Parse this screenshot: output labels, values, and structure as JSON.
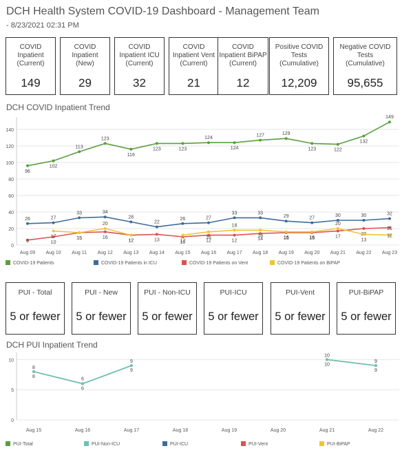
{
  "header": {
    "title": "DCH Health System COVID-19 Dashboard - Management Team",
    "subtitle": "- 8/23/2021 02:31 PM"
  },
  "kpis": [
    {
      "label": "COVID\nInpatient\n(Current)",
      "value": "149"
    },
    {
      "label": "COVID\nInpatient\n(New)",
      "value": "29"
    },
    {
      "label": "COVID\nInpatient ICU\n(Current)",
      "value": "32"
    },
    {
      "label": "COVID\nInpatient Vent\n(Current)",
      "value": "21"
    },
    {
      "label": "COVID\nInpatient BiPAP\n(Current)",
      "value": "12"
    },
    {
      "label": "Positive COVID\nTests\n(Cumulative)",
      "value": "12,209"
    },
    {
      "label": "Negative COVID\nTests\n(Cumulative)",
      "value": "95,655"
    }
  ],
  "pui_tiles": [
    {
      "label": "PUI - Total",
      "value": "5 or fewer"
    },
    {
      "label": "PUI - New",
      "value": "5 or fewer"
    },
    {
      "label": "PUI - Non-ICU",
      "value": "5 or fewer"
    },
    {
      "label": "PUI-ICU",
      "value": "5 or fewer"
    },
    {
      "label": "PUI-Vent",
      "value": "5 or fewer"
    },
    {
      "label": "PUI-BiPAP",
      "value": "5 or fewer"
    }
  ],
  "colors": {
    "green": "#5a9e3e",
    "blue": "#3f6b9a",
    "red": "#d9534f",
    "yellow": "#f0c433",
    "teal": "#6fc0b4"
  },
  "chart_data": [
    {
      "type": "line",
      "title": "DCH COVID Inpatient Trend",
      "categories": [
        "Aug 09",
        "Aug 10",
        "Aug 11",
        "Aug 12",
        "Aug 13",
        "Aug 14",
        "Aug 15",
        "Aug 16",
        "Aug 17",
        "Aug 18",
        "Aug 19",
        "Aug 20",
        "Aug 21",
        "Aug 22",
        "Aug 23"
      ],
      "yticks": [
        0,
        20,
        40,
        60,
        80,
        100,
        120,
        140
      ],
      "ylim": [
        0,
        150
      ],
      "grid": true,
      "legend_position": "bottom",
      "series": [
        {
          "name": "COVID-19 Patients",
          "color": "#5a9e3e",
          "values": [
            96,
            102,
            113,
            123,
            116,
            123,
            123,
            124,
            124,
            127,
            129,
            123,
            122,
            132,
            149
          ]
        },
        {
          "name": "COVID-19 Patients in ICU",
          "color": "#3f6b9a",
          "values": [
            26,
            27,
            33,
            34,
            28,
            22,
            26,
            27,
            33,
            33,
            29,
            27,
            30,
            30,
            32
          ]
        },
        {
          "name": "COVID-19 Patients on Vent",
          "color": "#d9534f",
          "values": [
            6,
            10,
            15,
            16,
            12,
            13,
            10,
            12,
            12,
            14,
            15,
            15,
            17,
            20,
            21
          ]
        },
        {
          "name": "COVID-19 Patients on BiPAP",
          "color": "#f0c433",
          "values": [
            null,
            17,
            15,
            20,
            12,
            null,
            12,
            16,
            18,
            18,
            16,
            16,
            20,
            13,
            12
          ]
        }
      ]
    },
    {
      "type": "line",
      "title": "DCH PUI Inpatient Trend",
      "categories": [
        "Aug 15",
        "Aug 16",
        "Aug 17",
        "Aug 18",
        "Aug 19",
        "Aug 20",
        "Aug 21",
        "Aug 22"
      ],
      "yticks": [
        0,
        5,
        10
      ],
      "ylim": [
        0,
        10.5
      ],
      "grid": true,
      "legend_position": "bottom",
      "series": [
        {
          "name": "PUI-Total",
          "color": "#5a9e3e",
          "values": [
            8,
            6,
            9,
            null,
            null,
            null,
            10,
            9
          ]
        },
        {
          "name": "PUI-Non-ICU",
          "color": "#6fc0b4",
          "values": [
            8,
            6,
            9,
            null,
            null,
            null,
            10,
            9
          ]
        },
        {
          "name": "PUI-ICU",
          "color": "#3f6b9a",
          "values": [
            null,
            null,
            null,
            null,
            null,
            null,
            null,
            null
          ]
        },
        {
          "name": "PUI-Vent",
          "color": "#d9534f",
          "values": [
            null,
            null,
            null,
            null,
            null,
            null,
            null,
            null
          ]
        },
        {
          "name": "PUI-BiPAP",
          "color": "#f0c433",
          "values": [
            null,
            null,
            null,
            null,
            null,
            null,
            null,
            null
          ]
        }
      ]
    }
  ]
}
